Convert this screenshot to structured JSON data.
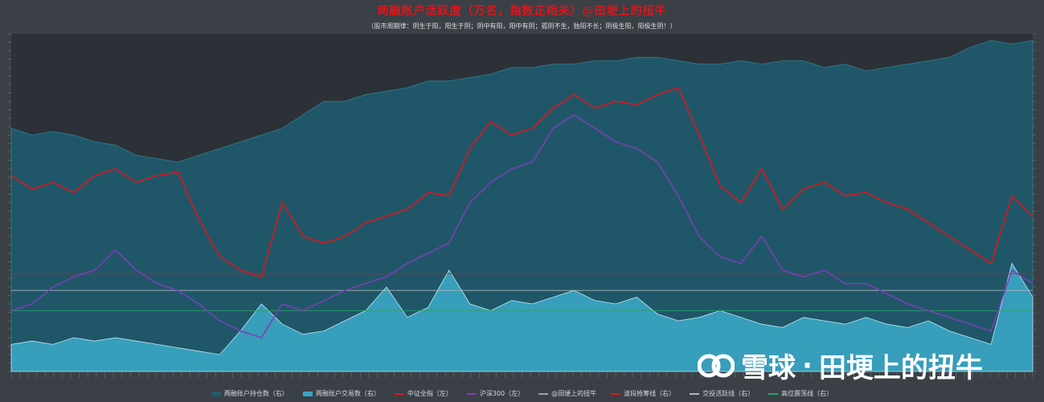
{
  "chart_data": {
    "type": "line",
    "title": "两融账户活跃度（万名，指数正相关）@田埂上的扭牛",
    "subtitle": "（股市周期律：阴生于阳，阳生于阴；阴中有阳，阳中有阴；孤阴不生，独阳不长；阴极生阳，阳极生阴！）",
    "legend_position": "bottom",
    "grid": false,
    "series": [
      {
        "name": "两融账户持仓数（右）",
        "type": "area",
        "color": "#1f5a6a",
        "values": [
          0.72,
          0.7,
          0.71,
          0.7,
          0.68,
          0.67,
          0.64,
          0.63,
          0.62,
          0.64,
          0.66,
          0.68,
          0.7,
          0.72,
          0.76,
          0.8,
          0.8,
          0.82,
          0.83,
          0.84,
          0.86,
          0.86,
          0.87,
          0.88,
          0.9,
          0.9,
          0.91,
          0.91,
          0.92,
          0.92,
          0.93,
          0.93,
          0.92,
          0.91,
          0.91,
          0.92,
          0.91,
          0.92,
          0.92,
          0.9,
          0.91,
          0.89,
          0.9,
          0.91,
          0.92,
          0.93,
          0.96,
          0.98,
          0.97,
          0.98
        ]
      },
      {
        "name": "两融账户交易数（右）",
        "type": "area",
        "color": "#3aa6c4",
        "values": [
          0.08,
          0.09,
          0.08,
          0.1,
          0.09,
          0.1,
          0.09,
          0.08,
          0.07,
          0.06,
          0.05,
          0.12,
          0.2,
          0.14,
          0.11,
          0.12,
          0.15,
          0.18,
          0.25,
          0.16,
          0.19,
          0.3,
          0.2,
          0.18,
          0.21,
          0.2,
          0.22,
          0.24,
          0.21,
          0.2,
          0.22,
          0.17,
          0.15,
          0.16,
          0.18,
          0.16,
          0.14,
          0.13,
          0.16,
          0.15,
          0.14,
          0.16,
          0.14,
          0.13,
          0.15,
          0.12,
          0.1,
          0.08,
          0.32,
          0.22
        ]
      },
      {
        "name": "中证全指（左）",
        "type": "line",
        "color": "#e0141b",
        "values": [
          0.58,
          0.54,
          0.56,
          0.53,
          0.58,
          0.6,
          0.56,
          0.58,
          0.59,
          0.45,
          0.34,
          0.3,
          0.28,
          0.5,
          0.4,
          0.38,
          0.4,
          0.44,
          0.46,
          0.48,
          0.53,
          0.52,
          0.66,
          0.74,
          0.7,
          0.72,
          0.78,
          0.82,
          0.78,
          0.8,
          0.79,
          0.82,
          0.84,
          0.7,
          0.55,
          0.5,
          0.6,
          0.48,
          0.54,
          0.56,
          0.52,
          0.53,
          0.5,
          0.48,
          0.44,
          0.4,
          0.36,
          0.32,
          0.52,
          0.46
        ]
      },
      {
        "name": "沪深300（左）",
        "type": "line",
        "color": "#7b3fb5",
        "values": [
          0.18,
          0.2,
          0.25,
          0.28,
          0.3,
          0.36,
          0.3,
          0.26,
          0.24,
          0.2,
          0.15,
          0.12,
          0.1,
          0.2,
          0.18,
          0.21,
          0.24,
          0.26,
          0.28,
          0.32,
          0.35,
          0.38,
          0.5,
          0.56,
          0.6,
          0.62,
          0.72,
          0.76,
          0.72,
          0.68,
          0.66,
          0.62,
          0.52,
          0.4,
          0.34,
          0.32,
          0.4,
          0.3,
          0.28,
          0.3,
          0.26,
          0.26,
          0.23,
          0.2,
          0.18,
          0.16,
          0.14,
          0.12,
          0.3,
          0.26
        ]
      }
    ],
    "reference_lines": [
      {
        "name": "@田埂上的扭牛",
        "color": "#9aa0a6"
      },
      {
        "name": "波段抢筹线（右）",
        "color": "#e0141b",
        "value": 0.29
      },
      {
        "name": "交投活跃线（右）",
        "color": "#b0b6bb",
        "value": 0.24
      },
      {
        "name": "高位震荡线（右）",
        "color": "#2aa06a",
        "value": 0.18
      }
    ]
  },
  "legend": [
    {
      "label": "两融账户持仓数（右）",
      "color": "#1f5a6a",
      "kind": "area"
    },
    {
      "label": "两融账户交易数（右）",
      "color": "#3aa6c4",
      "kind": "area"
    },
    {
      "label": "中证全指（左）",
      "color": "#e0141b",
      "kind": "line"
    },
    {
      "label": "沪深300（左）",
      "color": "#7b3fb5",
      "kind": "line"
    },
    {
      "label": "@田埂上的扭牛",
      "color": "#9aa0a6",
      "kind": "line"
    },
    {
      "label": "波段抢筹线（右）",
      "color": "#e0141b",
      "kind": "line"
    },
    {
      "label": "交投活跃线（右）",
      "color": "#b0b6bb",
      "kind": "line"
    },
    {
      "label": "高位震荡线（右）",
      "color": "#2aa06a",
      "kind": "line"
    }
  ],
  "watermark": {
    "brand": "雪球",
    "separator": "·",
    "author": "田埂上的扭牛",
    "icon": "snowball-logo-icon"
  }
}
